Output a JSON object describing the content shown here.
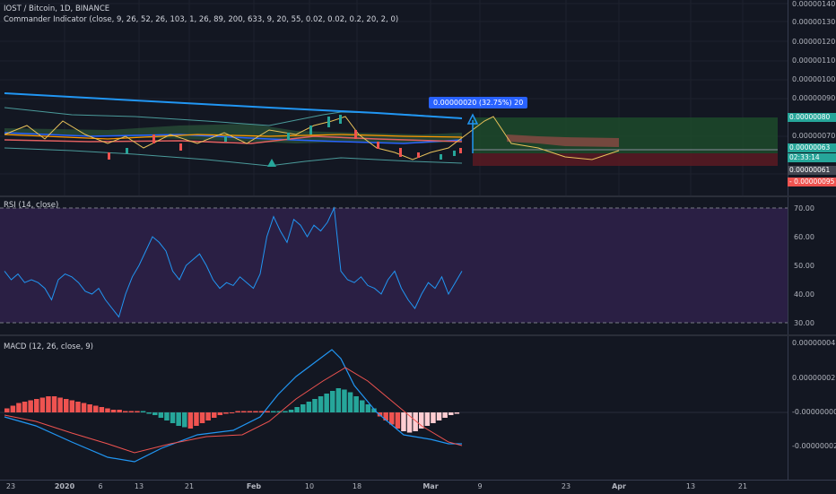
{
  "main": {
    "title": "IOST / Bitcoin, 1D, BINANCE",
    "indicator": "Commander Indicator (close, 9, 26, 52, 26, 103, 1, 26, 89, 200, 633, 9, 20, 55, 0.02, 0.02, 0.2, 20, 2, 0)",
    "price_axis": [
      "0.00000140",
      "0.00000130",
      "0.00000120",
      "0.00000110",
      "0.00000100",
      "0.00000090",
      "0.00000070",
      "0.00000050"
    ],
    "projection_label": "0.00000020 (32.75%) 20",
    "tags": {
      "target": "0.00000080",
      "current": "0.00000063",
      "countdown": "02:33:14",
      "entry": "0.00000061",
      "stop": "- 0.00000095"
    },
    "colors": {
      "target": "#26a69a",
      "current": "#26a69a",
      "entry": "#434651",
      "stop": "#ef5350"
    }
  },
  "rsi": {
    "legend": "RSI (14, close)",
    "axis": [
      "70.00",
      "60.00",
      "50.00",
      "40.00",
      "30.00"
    ],
    "values": [
      48,
      45,
      47,
      44,
      45,
      44,
      42,
      38,
      45,
      47,
      46,
      44,
      41,
      40,
      42,
      38,
      35,
      32,
      40,
      46,
      50,
      55,
      60,
      58,
      55,
      48,
      45,
      50,
      52,
      54,
      50,
      45,
      42,
      44,
      43,
      46,
      44,
      42,
      47,
      60,
      67,
      62,
      58,
      66,
      64,
      60,
      64,
      62,
      65,
      70,
      48,
      45,
      44,
      46,
      43,
      42,
      40,
      45,
      48,
      42,
      38,
      35,
      40,
      44,
      42,
      46,
      40,
      44,
      48
    ]
  },
  "macd": {
    "legend": "MACD (12, 26, close, 9)",
    "axis": [
      "0.00000004",
      "0.00000002",
      "-0.00000000",
      "-0.00000002"
    ]
  },
  "x_axis": {
    "labels": [
      "23",
      "2020",
      "6",
      "13",
      "21",
      "Feb",
      "10",
      "18",
      "Mar",
      "9",
      "23",
      "Apr",
      "13",
      "21"
    ]
  }
}
